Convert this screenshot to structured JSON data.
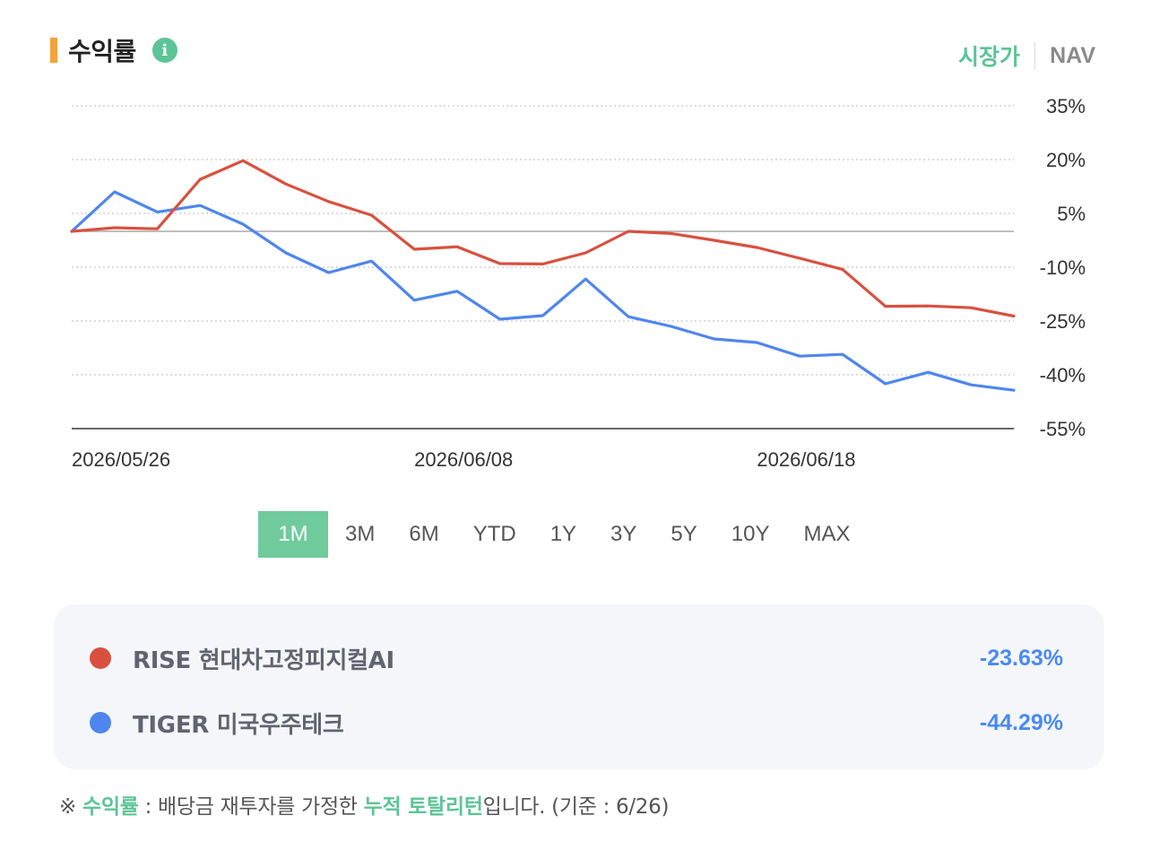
{
  "header": {
    "title": "수익률",
    "info_icon_glyph": "i"
  },
  "price_toggle": {
    "active": "시장가",
    "inactive": "NAV"
  },
  "periods": [
    "1M",
    "3M",
    "6M",
    "YTD",
    "1Y",
    "3Y",
    "5Y",
    "10Y",
    "MAX"
  ],
  "active_period": "1M",
  "legend": [
    {
      "name": "RISE 현대차고정피지컬AI",
      "value": "-23.63%",
      "color": "#d9503f"
    },
    {
      "name": "TIGER 미국우주테크",
      "value": "-44.29%",
      "color": "#4f86ee"
    }
  ],
  "footnote": {
    "prefix": "※ ",
    "term": "수익률",
    "middle": " : 배당금 재투자를 가정한 ",
    "emphasis": "누적 토탈리턴",
    "suffix": "입니다. (기준 : 6/26)"
  },
  "colors": {
    "accent_bar": "#f5a23a",
    "green": "#5cc496",
    "value_blue": "#4a8af0"
  },
  "chart_data": {
    "type": "line",
    "x_tick_labels": [
      "2026/05/26",
      "2026/06/08",
      "2026/06/18"
    ],
    "x_tick_positions": [
      0,
      8,
      16
    ],
    "y_ticks": [
      35,
      20,
      5,
      -10,
      -25,
      -40,
      -55
    ],
    "y_tick_labels": [
      "35%",
      "20%",
      "5%",
      "-10%",
      "-25%",
      "-40%",
      "-55%"
    ],
    "ylim": [
      -55,
      35
    ],
    "baseline": 0,
    "grid": "dotted horizontal",
    "y_axis_position": "right",
    "series": [
      {
        "name": "RISE 현대차고정피지컬AI",
        "color": "#d9503f",
        "values": [
          0,
          1,
          0.7,
          14.5,
          19.7,
          13.2,
          8.3,
          4.5,
          -5,
          -4.3,
          -9,
          -9.1,
          -6,
          0,
          -0.6,
          -2.5,
          -4.5,
          -7.5,
          -10.6,
          -20.9,
          -20.8,
          -21.3,
          -23.63
        ]
      },
      {
        "name": "TIGER 미국우주테크",
        "color": "#4f86ee",
        "values": [
          0,
          11,
          5.4,
          7.2,
          2,
          -6,
          -11.5,
          -8.3,
          -19.2,
          -16.7,
          -24.5,
          -23.5,
          -13.3,
          -23.8,
          -26.5,
          -30,
          -31,
          -34.8,
          -34.3,
          -42.5,
          -39.3,
          -42.8,
          -44.29
        ]
      }
    ]
  }
}
